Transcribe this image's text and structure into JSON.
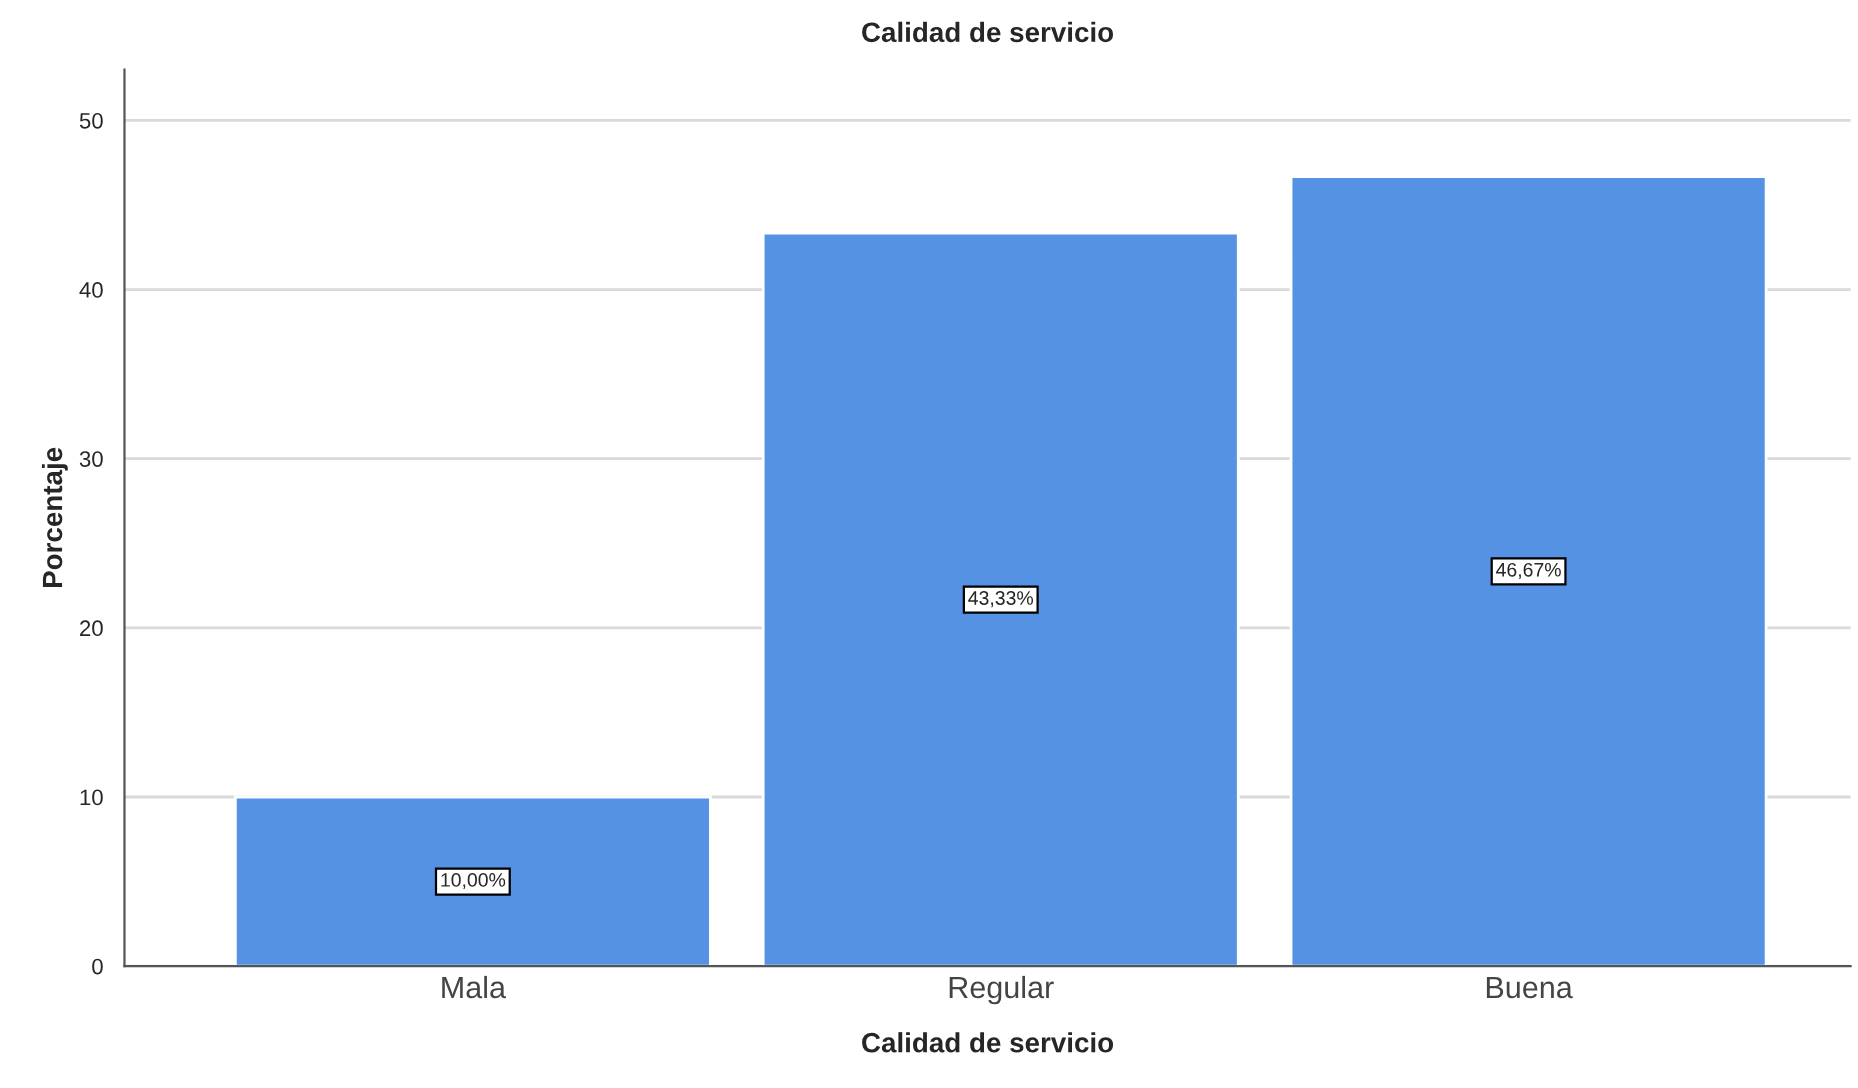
{
  "chart_data": {
    "type": "bar",
    "title": "Calidad de servicio",
    "xlabel": "Calidad de servicio",
    "ylabel": "Porcentaje",
    "categories": [
      "Mala",
      "Regular",
      "Buena"
    ],
    "values": [
      10.0,
      43.33,
      46.67
    ],
    "value_labels": [
      "10,00%",
      "43,33%",
      "46,67%"
    ],
    "color": "#5592e4",
    "ylim": [
      0,
      53
    ],
    "yticks": [
      0,
      10,
      20,
      30,
      40,
      50
    ],
    "grid": "y",
    "legend": false
  }
}
